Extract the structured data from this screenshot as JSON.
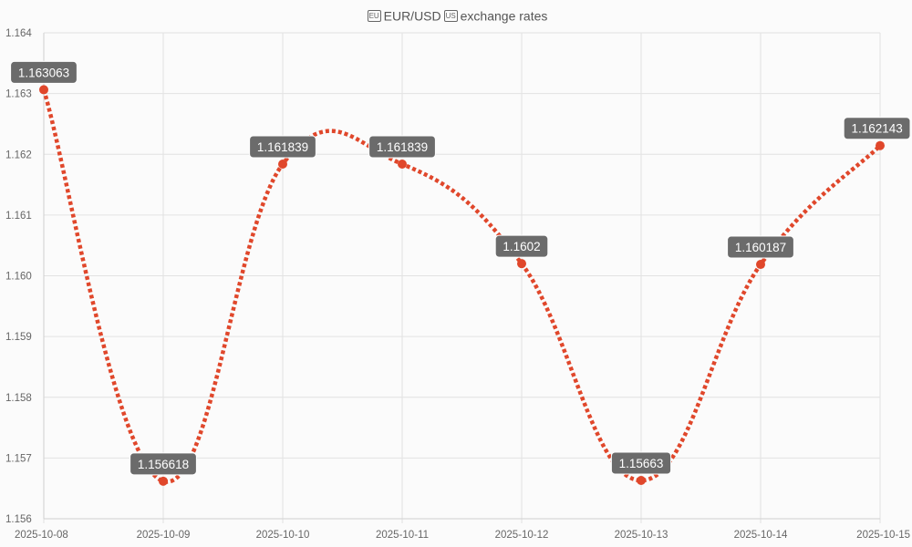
{
  "title_parts": {
    "icon1": "🇪🇺",
    "pair": "EUR/USD",
    "icon2": "🇺🇸",
    "rest": "exchange rates"
  },
  "colors": {
    "line": "#e0472b",
    "point": "#e0472b",
    "label_bg": "#6b6b6b",
    "grid": "#e2e2e2"
  },
  "chart_data": {
    "type": "line",
    "title": "🇪🇺 EUR/USD 🇺🇸 exchange rates",
    "categories": [
      "2025-10-08",
      "2025-10-09",
      "2025-10-10",
      "2025-10-11",
      "2025-10-12",
      "2025-10-13",
      "2025-10-14",
      "2025-10-15"
    ],
    "series": [
      {
        "values": [
          1.163063,
          1.156618,
          1.161839,
          1.161839,
          1.1602,
          1.15663,
          1.160187,
          1.162143
        ]
      }
    ],
    "data_labels": [
      "1.163063",
      "1.156618",
      "1.161839",
      "1.161839",
      "1.1602",
      "1.15663",
      "1.160187",
      "1.162143"
    ],
    "y_ticks": [
      "1.164",
      "1.163",
      "1.162",
      "1.161",
      "1.160",
      "1.159",
      "1.158",
      "1.157",
      "1.156"
    ],
    "ylim": [
      1.156,
      1.164
    ],
    "line_style": "dotted, smoothed",
    "grid": true,
    "legend": "none"
  }
}
